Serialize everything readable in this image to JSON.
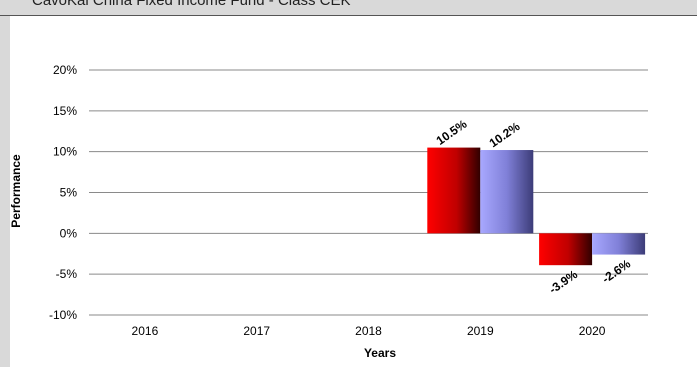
{
  "header": {
    "title": "CavoKai China Fixed Income Fund - Class CEK"
  },
  "chart_data": {
    "type": "bar",
    "xlabel": "Years",
    "ylabel": "Performance",
    "categories": [
      "2016",
      "2017",
      "2018",
      "2019",
      "2020"
    ],
    "y_ticks": [
      "20%",
      "15%",
      "10%",
      "5%",
      "0%",
      "-5%",
      "-10%"
    ],
    "ylim": [
      -10,
      20
    ],
    "grid": true,
    "legend": "none",
    "series": [
      {
        "color": "#e00000",
        "values": [
          null,
          null,
          null,
          10.5,
          -3.9
        ],
        "labels": [
          "",
          "",
          "",
          "10.5%",
          "-3.9%"
        ]
      },
      {
        "color": "#9999ff",
        "values": [
          null,
          null,
          null,
          10.2,
          -2.6
        ],
        "labels": [
          "",
          "",
          "",
          "10.2%",
          "-2.6%"
        ]
      }
    ]
  }
}
